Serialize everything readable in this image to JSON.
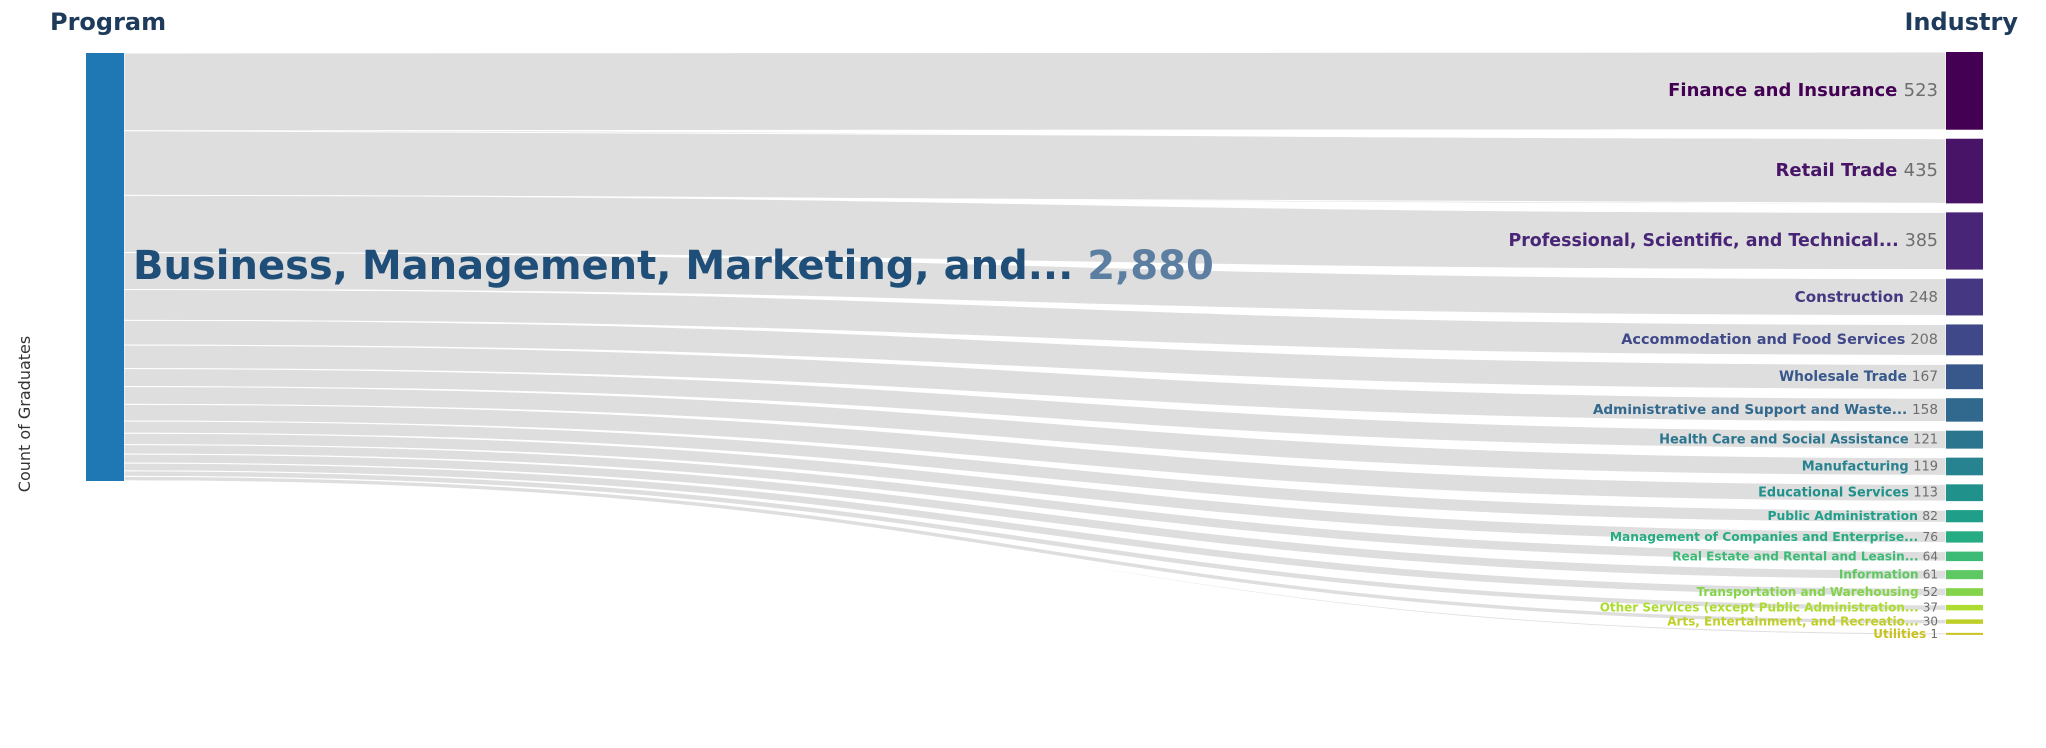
{
  "chart_data": {
    "type": "sankey",
    "source_header": "Program",
    "target_header": "Industry",
    "ylabel": "Count of Graduates",
    "source": {
      "name": "Business, Management, Marketing, and...",
      "value": 2880,
      "value_label": "2,880",
      "color": "#1f77b4"
    },
    "targets": [
      {
        "name": "Finance and Insurance",
        "value": 523,
        "color": "#440154"
      },
      {
        "name": "Retail Trade",
        "value": 435,
        "color": "#481467"
      },
      {
        "name": "Professional, Scientific, and Technical...",
        "value": 385,
        "color": "#482576"
      },
      {
        "name": "Construction",
        "value": 248,
        "color": "#453781"
      },
      {
        "name": "Accommodation and Food Services",
        "value": 208,
        "color": "#3f4889"
      },
      {
        "name": "Wholesale Trade",
        "value": 167,
        "color": "#38588c"
      },
      {
        "name": "Administrative and Support and Waste...",
        "value": 158,
        "color": "#31688e"
      },
      {
        "name": "Health Care and Social Assistance",
        "value": 121,
        "color": "#2b758e"
      },
      {
        "name": "Manufacturing",
        "value": 119,
        "color": "#26838f"
      },
      {
        "name": "Educational Services",
        "value": 113,
        "color": "#21918c"
      },
      {
        "name": "Public Administration",
        "value": 82,
        "color": "#1f9e89"
      },
      {
        "name": "Management of Companies and Enterprise...",
        "value": 76,
        "color": "#25ac82"
      },
      {
        "name": "Real Estate and Rental and Leasin...",
        "value": 64,
        "color": "#3bbb75"
      },
      {
        "name": "Information",
        "value": 61,
        "color": "#5ec962"
      },
      {
        "name": "Transportation and Warehousing",
        "value": 52,
        "color": "#84d44b"
      },
      {
        "name": "Other Services (except Public Administration...",
        "value": 37,
        "color": "#addc30"
      },
      {
        "name": "Arts, Entertainment, and Recreatio...",
        "value": 30,
        "color": "#bfcf28"
      },
      {
        "name": "Utilities",
        "value": 1,
        "color": "#c9c21e"
      }
    ],
    "colors": {
      "link": "#d0d0d0",
      "link_overlap": "#a8a8a8",
      "source_label": "#1f4e79",
      "source_value": "#5c7ea0",
      "value_text": "#6e6e6e"
    }
  }
}
